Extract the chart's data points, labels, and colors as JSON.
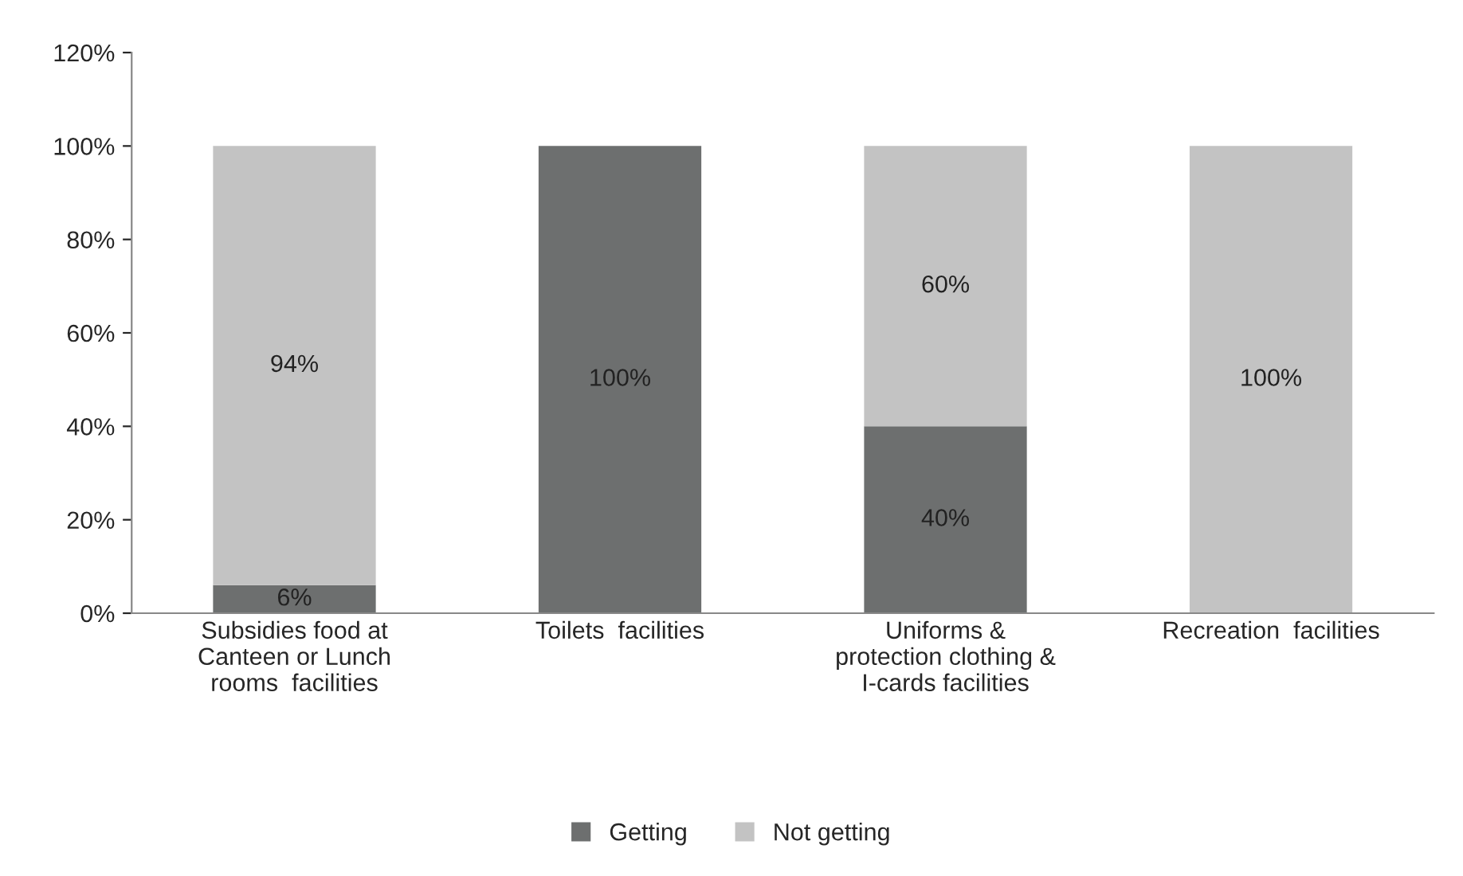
{
  "chart_data": {
    "type": "bar",
    "stacked": true,
    "categories": [
      "Subsidies food at\nCanteen or Lunch\nrooms  facilities",
      "Toilets  facilities",
      "Uniforms &\nprotection clothing &\nI-cards facilities",
      "Recreation  facilities"
    ],
    "series": [
      {
        "name": "Getting",
        "color": "#6d6f6f",
        "values": [
          6,
          100,
          40,
          0
        ],
        "value_labels": [
          "6%",
          "100%",
          "40%",
          null
        ]
      },
      {
        "name": "Not getting",
        "color": "#c3c3c3",
        "values": [
          94,
          0,
          60,
          100
        ],
        "value_labels": [
          "94%",
          null,
          "60%",
          "100%"
        ]
      }
    ],
    "ylim": [
      0,
      120
    ],
    "yticks": [
      {
        "value": 0,
        "label": "0%"
      },
      {
        "value": 20,
        "label": "20%"
      },
      {
        "value": 40,
        "label": "40%"
      },
      {
        "value": 60,
        "label": "60%"
      },
      {
        "value": 80,
        "label": "80%"
      },
      {
        "value": 100,
        "label": "100%"
      },
      {
        "value": 120,
        "label": "120%"
      }
    ],
    "grid": false,
    "legend": "bottom"
  }
}
